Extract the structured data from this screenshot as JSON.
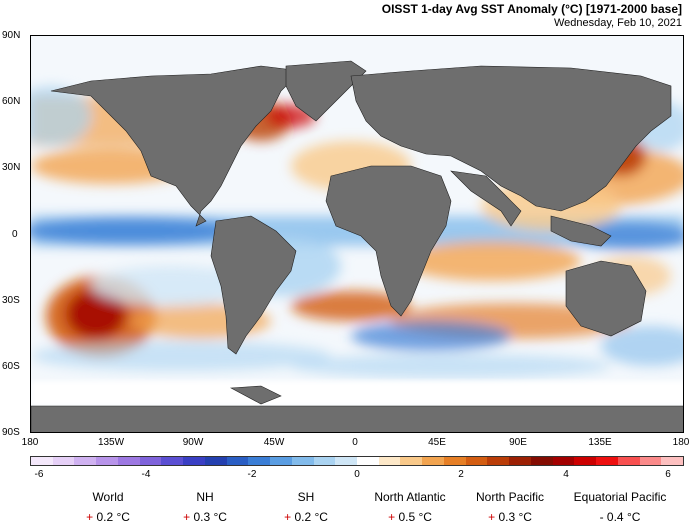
{
  "header": {
    "title": "OISST 1-day Avg SST Anomaly (°C) [1971-2000 base]",
    "date": "Wednesday, Feb 10, 2021"
  },
  "axes": {
    "lat_labels": [
      "90N",
      "60N",
      "30N",
      "0",
      "30S",
      "60S",
      "90S"
    ],
    "lon_labels": [
      "180",
      "135W",
      "90W",
      "45W",
      "0",
      "45E",
      "90E",
      "135E",
      "180"
    ]
  },
  "colorbar": {
    "labels": [
      "-6",
      "-4",
      "-2",
      "0",
      "2",
      "4",
      "6"
    ],
    "colors": [
      "#f4e8fb",
      "#e6d0f7",
      "#d0b2f1",
      "#b894ea",
      "#9d78e2",
      "#7f63db",
      "#5b4fd3",
      "#3a3fc4",
      "#2440b0",
      "#2a5ec4",
      "#3b7ed6",
      "#5a9de2",
      "#82bbeb",
      "#aad3f1",
      "#cfe6f6",
      "#ffffff",
      "#fde8c8",
      "#f9c98a",
      "#f2a450",
      "#e67f26",
      "#d35d12",
      "#ba3d08",
      "#9c2004",
      "#840c02",
      "#a30000",
      "#cc0000",
      "#ee1010",
      "#f85050",
      "#fb8a8a",
      "#fdc0c0"
    ]
  },
  "colors": {
    "land": "#6e6e6e",
    "ice": "#ffffff",
    "ocean_base": "#f4f8fc"
  },
  "stats": [
    {
      "name": "World",
      "sign": "+",
      "value": "0.2 °C"
    },
    {
      "name": "NH",
      "sign": "+",
      "value": "0.3 °C"
    },
    {
      "name": "SH",
      "sign": "+",
      "value": "0.2 °C"
    },
    {
      "name": "North Atlantic",
      "sign": "+",
      "value": "0.5 °C"
    },
    {
      "name": "North Pacific",
      "sign": "+",
      "value": "0.3 °C"
    },
    {
      "name": "Equatorial Pacific",
      "sign": "-",
      "value": "0.4 °C"
    }
  ]
}
